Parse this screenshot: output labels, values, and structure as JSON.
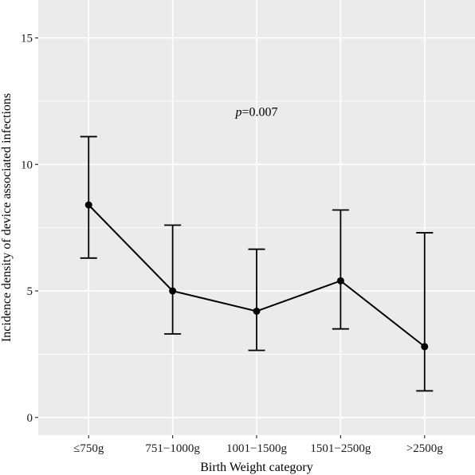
{
  "chart_data": {
    "type": "line",
    "xlabel": "Birth Weight category",
    "ylabel": "Incidence density of device associated infections",
    "categories": [
      "≤750g",
      "751−1000g",
      "1001−1500g",
      "1501−2500g",
      ">2500g"
    ],
    "values": [
      8.4,
      5.0,
      4.2,
      5.4,
      2.8
    ],
    "error_lower": [
      6.3,
      3.3,
      2.65,
      3.5,
      1.05
    ],
    "error_upper": [
      11.1,
      7.6,
      6.65,
      8.2,
      7.3
    ],
    "ylim": [
      -0.7,
      16.5
    ],
    "yticks": [
      0,
      5,
      10,
      15
    ],
    "ytick_labels": [
      "0",
      "5",
      "10",
      "15"
    ],
    "grid": true,
    "annotation": {
      "italic": "p",
      "text": "=0.007",
      "x": 2,
      "y": 12.1
    },
    "colors": {
      "panel": "#ebebeb",
      "grid": "#ffffff",
      "line": "#000000"
    }
  }
}
